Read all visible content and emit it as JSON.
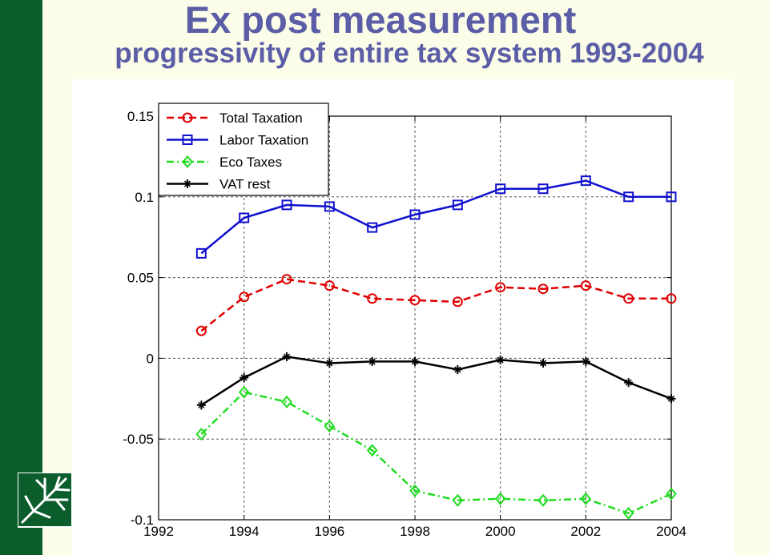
{
  "header": {
    "title_line1": "Ex post measurement",
    "title_line2": "progressivity of entire tax system 1993-2004"
  },
  "theme": {
    "band_color": "#0b5e2c",
    "title_color": "#5b5ea6",
    "background": "#fbfde9"
  },
  "logo": {
    "icon": "tree-branches-icon"
  },
  "chart_data": {
    "type": "line",
    "xlim": [
      1992,
      2004
    ],
    "ylim": [
      -0.1,
      0.15
    ],
    "x_ticks": [
      1992,
      1994,
      1996,
      1998,
      2000,
      2002,
      2004
    ],
    "x_tick_labels": [
      "1992",
      "1994",
      "1996",
      "1998",
      "2000",
      "2002",
      "2004"
    ],
    "y_ticks": [
      -0.1,
      -0.05,
      0,
      0.05,
      0.1,
      0.15
    ],
    "y_tick_labels": [
      "-0.1",
      "-0.05",
      "0",
      "0.05",
      "0.1",
      "0.15"
    ],
    "grid": true,
    "legend_position": "top-left",
    "x": [
      1993,
      1994,
      1995,
      1996,
      1997,
      1998,
      1999,
      2000,
      2001,
      2002,
      2003,
      2004
    ],
    "series": [
      {
        "name": "Total Taxation",
        "color": "#e00000",
        "line_style": "dashed",
        "marker": "circle",
        "values": [
          0.017,
          0.038,
          0.049,
          0.045,
          0.037,
          0.036,
          0.035,
          0.044,
          0.043,
          0.045,
          0.037,
          0.037
        ]
      },
      {
        "name": "Labor Taxation",
        "color": "#1010d0",
        "line_style": "solid",
        "marker": "square",
        "values": [
          0.065,
          0.087,
          0.095,
          0.094,
          0.081,
          0.089,
          0.095,
          0.105,
          0.105,
          0.11,
          0.1,
          0.1
        ]
      },
      {
        "name": "Eco Taxes",
        "color": "#1fdc1f",
        "line_style": "dashdot",
        "marker": "diamond",
        "values": [
          -0.047,
          -0.021,
          -0.027,
          -0.042,
          -0.057,
          -0.082,
          -0.088,
          -0.087,
          -0.088,
          -0.087,
          -0.096,
          -0.084
        ]
      },
      {
        "name": "VAT rest",
        "color": "#000000",
        "line_style": "solid",
        "marker": "star",
        "values": [
          -0.029,
          -0.012,
          0.001,
          -0.003,
          -0.002,
          -0.002,
          -0.007,
          -0.001,
          -0.003,
          -0.002,
          -0.015,
          -0.025
        ]
      }
    ]
  }
}
